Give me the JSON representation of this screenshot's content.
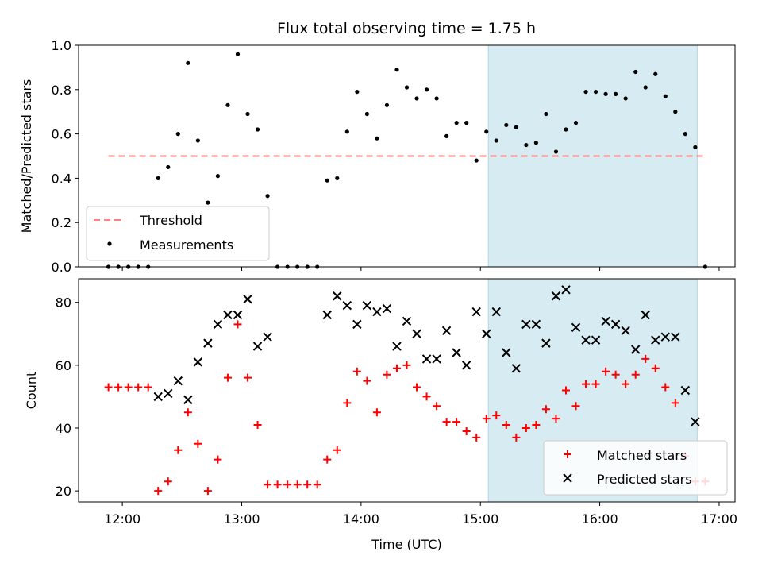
{
  "chart_data": [
    {
      "type": "scatter",
      "title": "Flux total observing time = 1.75 h",
      "ylabel": "Matched/Predicted stars",
      "xlim": [
        "11:38",
        "17:08"
      ],
      "ylim": [
        0,
        1.0
      ],
      "yticks": [
        "0.0",
        "0.2",
        "0.4",
        "0.6",
        "0.8",
        "1.0"
      ],
      "shaded_region": {
        "from": "15:04",
        "to": "16:49",
        "color": "#add8e6"
      },
      "legend_position": "lower-left",
      "threshold": {
        "name": "Threshold",
        "value": 0.5,
        "from": "11:53",
        "to": "16:53",
        "color": "#ff7f7f",
        "style": "dashed"
      },
      "series": [
        {
          "name": "Measurements",
          "color": "#000000",
          "marker": "dot",
          "points": [
            [
              "11:53",
              0.0
            ],
            [
              "11:58",
              0.0
            ],
            [
              "12:03",
              0.0
            ],
            [
              "12:08",
              0.0
            ],
            [
              "12:13",
              0.0
            ],
            [
              "12:18",
              0.4
            ],
            [
              "12:23",
              0.45
            ],
            [
              "12:28",
              0.6
            ],
            [
              "12:33",
              0.92
            ],
            [
              "12:38",
              0.57
            ],
            [
              "12:43",
              0.29
            ],
            [
              "12:48",
              0.41
            ],
            [
              "12:53",
              0.73
            ],
            [
              "12:58",
              0.96
            ],
            [
              "13:03",
              0.69
            ],
            [
              "13:08",
              0.62
            ],
            [
              "13:13",
              0.32
            ],
            [
              "13:18",
              0.0
            ],
            [
              "13:23",
              0.0
            ],
            [
              "13:28",
              0.0
            ],
            [
              "13:33",
              0.0
            ],
            [
              "13:38",
              0.0
            ],
            [
              "13:43",
              0.39
            ],
            [
              "13:48",
              0.4
            ],
            [
              "13:53",
              0.61
            ],
            [
              "13:58",
              0.79
            ],
            [
              "14:03",
              0.69
            ],
            [
              "14:08",
              0.58
            ],
            [
              "14:13",
              0.73
            ],
            [
              "14:18",
              0.89
            ],
            [
              "14:23",
              0.81
            ],
            [
              "14:28",
              0.76
            ],
            [
              "14:33",
              0.8
            ],
            [
              "14:38",
              0.76
            ],
            [
              "14:43",
              0.59
            ],
            [
              "14:48",
              0.65
            ],
            [
              "14:53",
              0.65
            ],
            [
              "14:58",
              0.48
            ],
            [
              "15:03",
              0.61
            ],
            [
              "15:08",
              0.57
            ],
            [
              "15:13",
              0.64
            ],
            [
              "15:18",
              0.63
            ],
            [
              "15:23",
              0.55
            ],
            [
              "15:28",
              0.56
            ],
            [
              "15:33",
              0.69
            ],
            [
              "15:38",
              0.52
            ],
            [
              "15:43",
              0.62
            ],
            [
              "15:48",
              0.65
            ],
            [
              "15:53",
              0.79
            ],
            [
              "15:58",
              0.79
            ],
            [
              "16:03",
              0.78
            ],
            [
              "16:08",
              0.78
            ],
            [
              "16:13",
              0.76
            ],
            [
              "16:18",
              0.88
            ],
            [
              "16:23",
              0.81
            ],
            [
              "16:28",
              0.87
            ],
            [
              "16:33",
              0.77
            ],
            [
              "16:38",
              0.7
            ],
            [
              "16:43",
              0.6
            ],
            [
              "16:48",
              0.54
            ],
            [
              "16:53",
              0.0
            ]
          ]
        }
      ]
    },
    {
      "type": "scatter",
      "xlabel": "Time (UTC)",
      "ylabel": "Count",
      "xlim": [
        "11:38",
        "17:08"
      ],
      "ylim": [
        16.5,
        87.5
      ],
      "xticks": [
        "12:00",
        "13:00",
        "14:00",
        "15:00",
        "16:00",
        "17:00"
      ],
      "yticks": [
        "20",
        "40",
        "60",
        "80"
      ],
      "shaded_region": {
        "from": "15:04",
        "to": "16:49",
        "color": "#add8e6"
      },
      "legend_position": "lower-right",
      "series": [
        {
          "name": "Matched stars",
          "color": "#ff0000",
          "marker": "plus",
          "points": [
            [
              "11:53",
              53
            ],
            [
              "11:58",
              53
            ],
            [
              "12:03",
              53
            ],
            [
              "12:08",
              53
            ],
            [
              "12:13",
              53
            ],
            [
              "12:18",
              20
            ],
            [
              "12:23",
              23
            ],
            [
              "12:28",
              33
            ],
            [
              "12:33",
              45
            ],
            [
              "12:38",
              35
            ],
            [
              "12:43",
              20
            ],
            [
              "12:48",
              30
            ],
            [
              "12:53",
              56
            ],
            [
              "12:58",
              73
            ],
            [
              "13:03",
              56
            ],
            [
              "13:08",
              41
            ],
            [
              "13:13",
              22
            ],
            [
              "13:18",
              22
            ],
            [
              "13:23",
              22
            ],
            [
              "13:28",
              22
            ],
            [
              "13:33",
              22
            ],
            [
              "13:38",
              22
            ],
            [
              "13:43",
              30
            ],
            [
              "13:48",
              33
            ],
            [
              "13:53",
              48
            ],
            [
              "13:58",
              58
            ],
            [
              "14:03",
              55
            ],
            [
              "14:08",
              45
            ],
            [
              "14:13",
              57
            ],
            [
              "14:18",
              59
            ],
            [
              "14:23",
              60
            ],
            [
              "14:28",
              53
            ],
            [
              "14:33",
              50
            ],
            [
              "14:38",
              47
            ],
            [
              "14:43",
              42
            ],
            [
              "14:48",
              42
            ],
            [
              "14:53",
              39
            ],
            [
              "14:58",
              37
            ],
            [
              "15:03",
              43
            ],
            [
              "15:08",
              44
            ],
            [
              "15:13",
              41
            ],
            [
              "15:18",
              37
            ],
            [
              "15:23",
              40
            ],
            [
              "15:28",
              41
            ],
            [
              "15:33",
              46
            ],
            [
              "15:38",
              43
            ],
            [
              "15:43",
              52
            ],
            [
              "15:48",
              47
            ],
            [
              "15:53",
              54
            ],
            [
              "15:58",
              54
            ],
            [
              "16:03",
              58
            ],
            [
              "16:08",
              57
            ],
            [
              "16:13",
              54
            ],
            [
              "16:18",
              57
            ],
            [
              "16:23",
              62
            ],
            [
              "16:28",
              59
            ],
            [
              "16:33",
              53
            ],
            [
              "16:38",
              48
            ],
            [
              "16:43",
              31
            ],
            [
              "16:48",
              23
            ],
            [
              "16:53",
              23
            ]
          ]
        },
        {
          "name": "Predicted stars",
          "color": "#000000",
          "marker": "x",
          "points": [
            [
              "12:18",
              50
            ],
            [
              "12:23",
              51
            ],
            [
              "12:28",
              55
            ],
            [
              "12:33",
              49
            ],
            [
              "12:38",
              61
            ],
            [
              "12:43",
              67
            ],
            [
              "12:48",
              73
            ],
            [
              "12:53",
              76
            ],
            [
              "12:58",
              76
            ],
            [
              "13:03",
              81
            ],
            [
              "13:08",
              66
            ],
            [
              "13:13",
              69
            ],
            [
              "13:43",
              76
            ],
            [
              "13:48",
              82
            ],
            [
              "13:53",
              79
            ],
            [
              "13:58",
              73
            ],
            [
              "14:03",
              79
            ],
            [
              "14:08",
              77
            ],
            [
              "14:13",
              78
            ],
            [
              "14:18",
              66
            ],
            [
              "14:23",
              74
            ],
            [
              "14:28",
              70
            ],
            [
              "14:33",
              62
            ],
            [
              "14:38",
              62
            ],
            [
              "14:43",
              71
            ],
            [
              "14:48",
              64
            ],
            [
              "14:53",
              60
            ],
            [
              "14:58",
              77
            ],
            [
              "15:03",
              70
            ],
            [
              "15:08",
              77
            ],
            [
              "15:13",
              64
            ],
            [
              "15:18",
              59
            ],
            [
              "15:23",
              73
            ],
            [
              "15:28",
              73
            ],
            [
              "15:33",
              67
            ],
            [
              "15:38",
              82
            ],
            [
              "15:43",
              84
            ],
            [
              "15:48",
              72
            ],
            [
              "15:53",
              68
            ],
            [
              "15:58",
              68
            ],
            [
              "16:03",
              74
            ],
            [
              "16:08",
              73
            ],
            [
              "16:13",
              71
            ],
            [
              "16:18",
              65
            ],
            [
              "16:23",
              76
            ],
            [
              "16:28",
              68
            ],
            [
              "16:33",
              69
            ],
            [
              "16:38",
              69
            ],
            [
              "16:43",
              52
            ],
            [
              "16:48",
              42
            ]
          ]
        }
      ]
    }
  ]
}
